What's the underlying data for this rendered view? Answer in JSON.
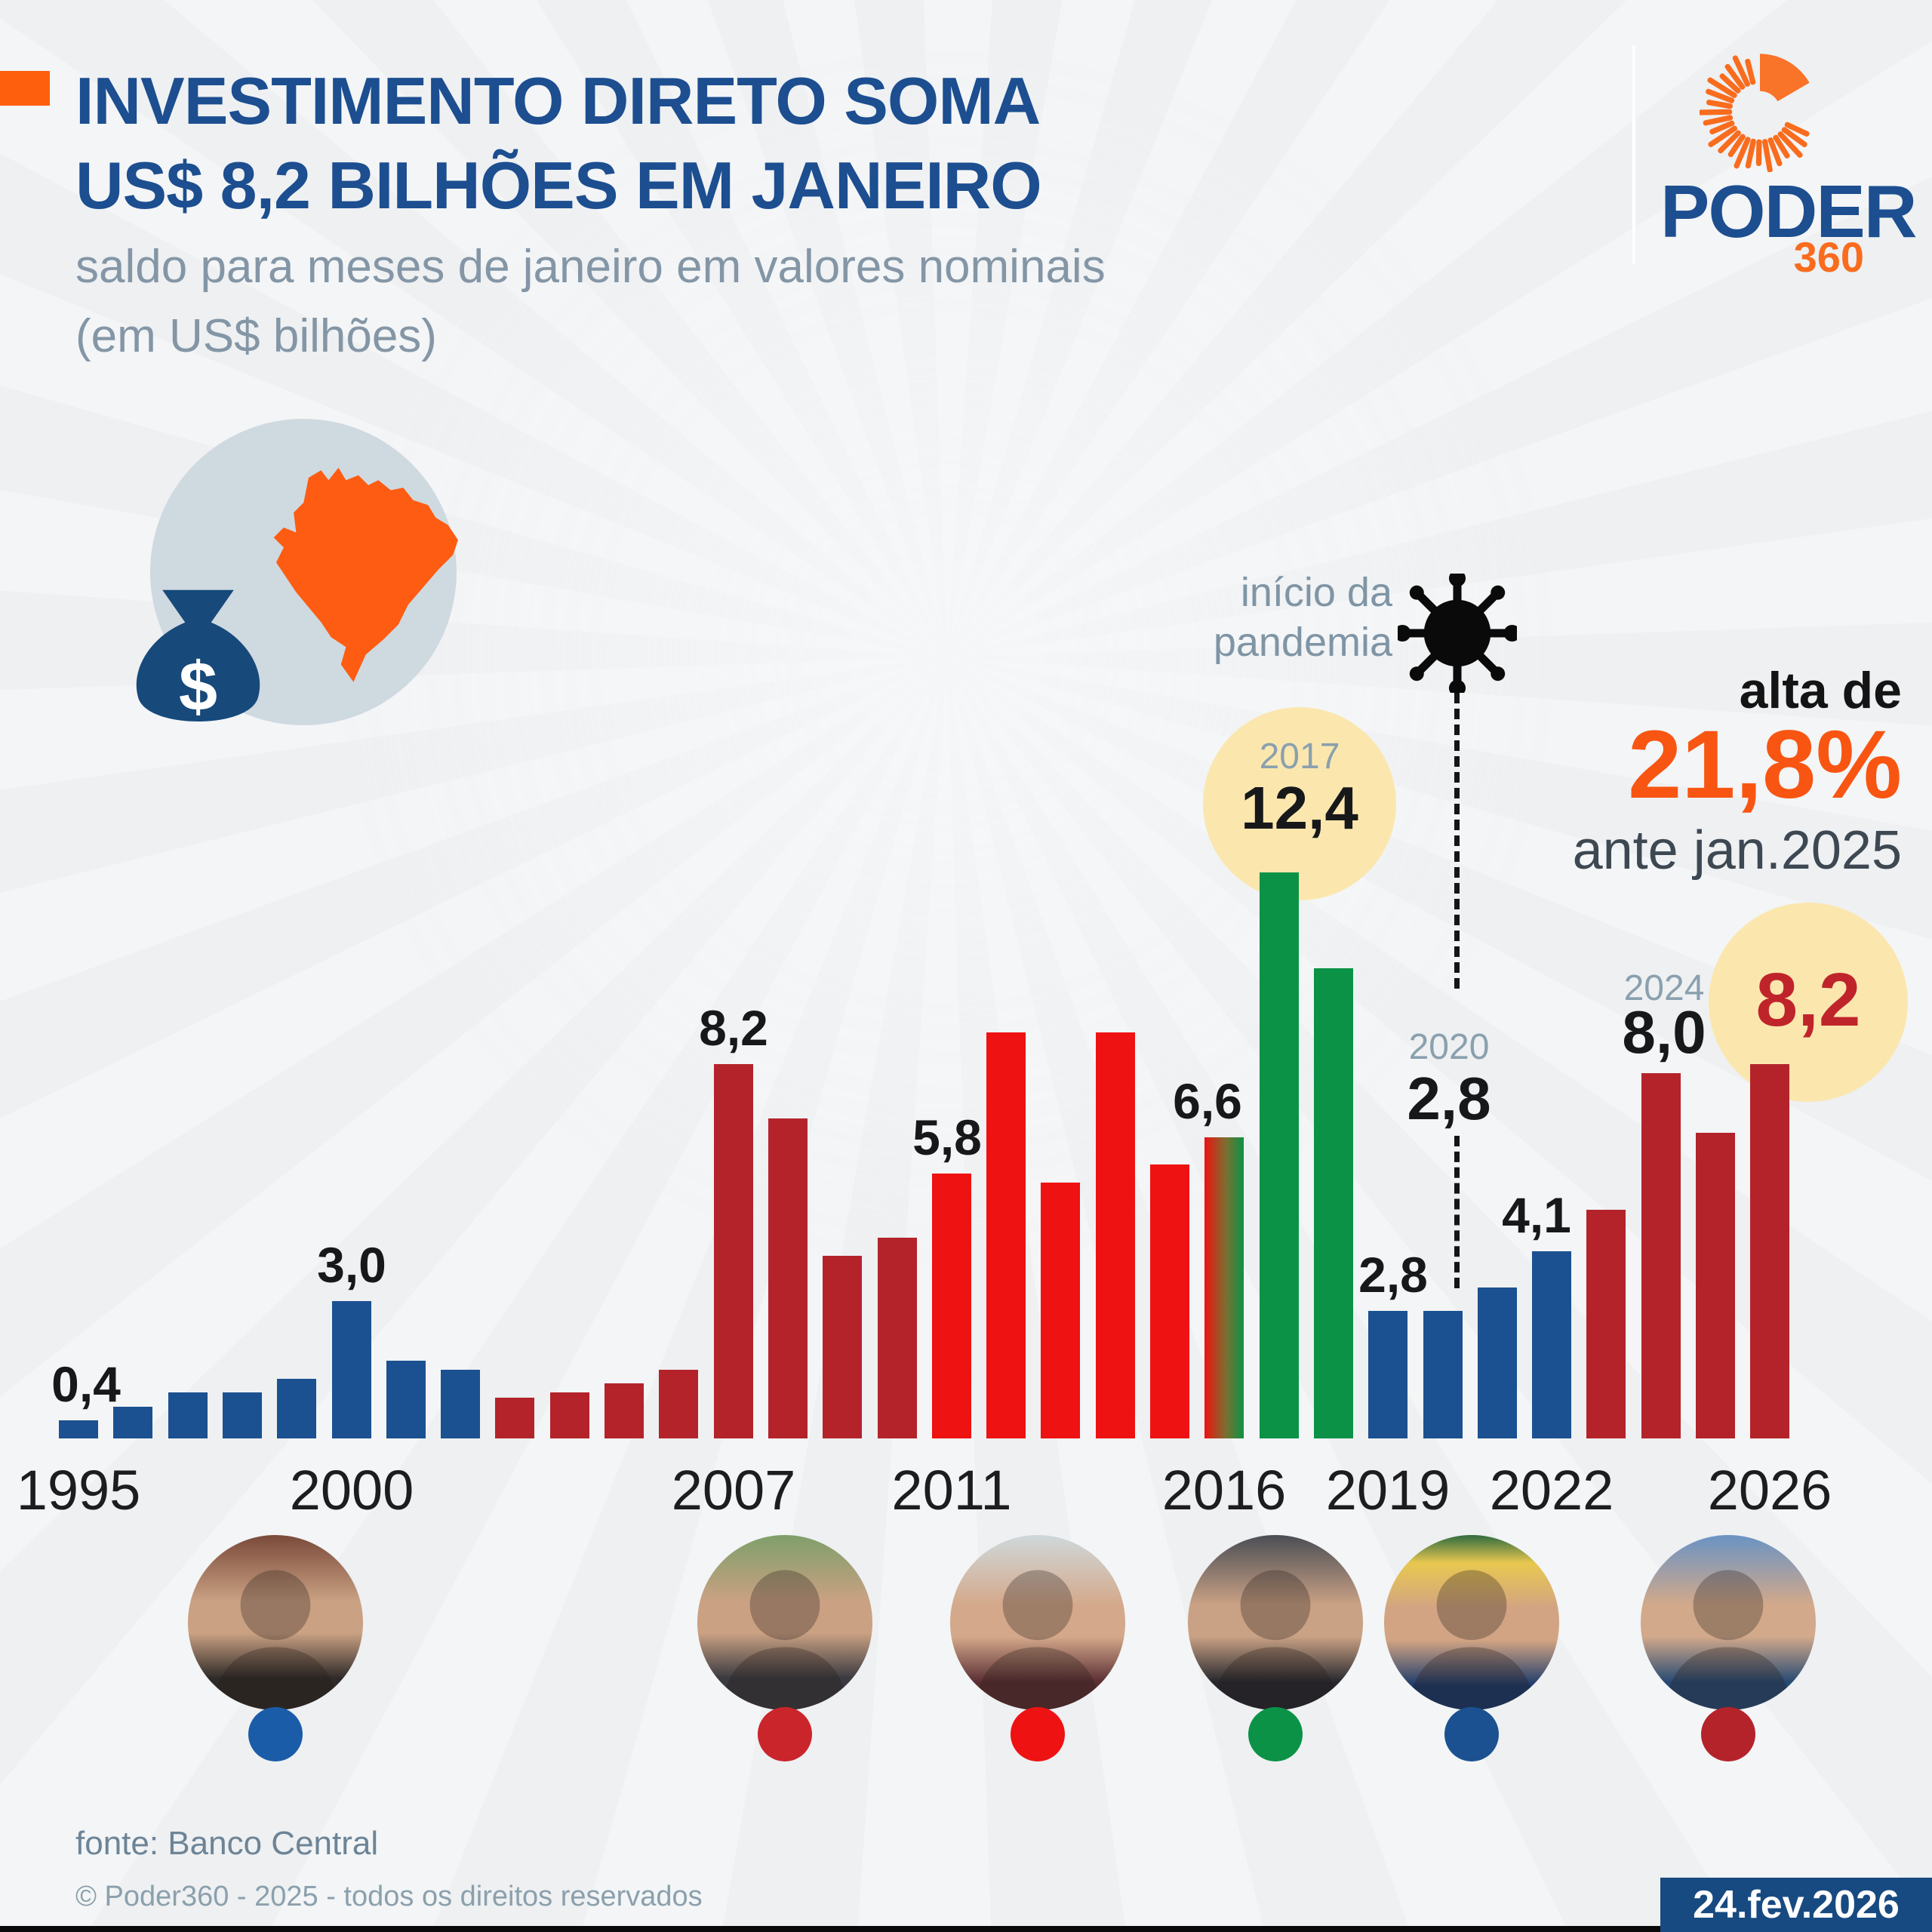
{
  "page": {
    "background": "#eef0f2",
    "bottom_bar_color": "#0a0a0a"
  },
  "header": {
    "accent_square_color": "#fd5f0c",
    "title_line1": "INVESTIMENTO DIRETO SOMA",
    "title_line2": "US$ 8,2 BILHÕES EM JANEIRO",
    "title_color": "#1c4e90",
    "subtitle_line1": "saldo para meses de janeiro em valores nominais",
    "subtitle_line2": "(em US$ bilhões)",
    "subtitle_color": "#8496a6"
  },
  "logo": {
    "word": "PODER",
    "suffix": "360",
    "word_color": "#1c4e90",
    "accent_color": "#f96c1e"
  },
  "icon_badge": {
    "circle_color": "#cfd9e0",
    "map_color": "#fd5c12",
    "bag_color": "#17497b",
    "bag_symbol": "$"
  },
  "annotations": {
    "pandemic": {
      "line1": "início da",
      "line2": "pandemia",
      "color": "#7f95a5"
    },
    "y2017": {
      "year": "2017",
      "value": "12,4",
      "circle_color": "#fbe7ae"
    },
    "y2020": {
      "year": "2020",
      "value": "2,8"
    },
    "y2024": {
      "year": "2024",
      "value": "8,0"
    },
    "y2026": {
      "value": "8,2",
      "value_color": "#c0242b",
      "circle_color": "#fbe7ae"
    },
    "delta": {
      "intro": "alta de",
      "value": "21,8%",
      "value_color": "#f85512",
      "compare": "ante jan.2025"
    }
  },
  "chart_data": {
    "type": "bar",
    "title": "Investimento direto soma US$ 8,2 bilhões em janeiro",
    "subtitle": "saldo para meses de janeiro em valores nominais (em US$ bilhões)",
    "unit": "US$ bilhões",
    "ylim": [
      0,
      13
    ],
    "grid": false,
    "x": [
      1995,
      1996,
      1997,
      1998,
      1999,
      2000,
      2001,
      2002,
      2003,
      2004,
      2005,
      2006,
      2007,
      2008,
      2009,
      2010,
      2011,
      2012,
      2013,
      2014,
      2015,
      2016,
      2017,
      2018,
      2019,
      2020,
      2021,
      2022,
      2023,
      2024,
      2025,
      2026
    ],
    "values": [
      0.4,
      0.7,
      1.0,
      1.0,
      1.3,
      3.0,
      1.7,
      1.5,
      0.9,
      1.0,
      1.2,
      1.5,
      8.2,
      7.0,
      4.0,
      4.4,
      5.8,
      8.9,
      5.6,
      8.9,
      6.0,
      6.6,
      12.4,
      10.3,
      2.8,
      2.8,
      3.3,
      4.1,
      5.0,
      8.0,
      6.7,
      8.2
    ],
    "bar_value_labels": {
      "1995": "0,4",
      "2000": "3,0",
      "2007": "8,2",
      "2011": "5,8",
      "2016": "6,6",
      "2019": "2,8",
      "2022": "4,1"
    },
    "highlighted_values": {
      "2017": "12,4",
      "2020": "2,8",
      "2024": "8,0",
      "2026": "8,2"
    },
    "axis_ticks": [
      "1995",
      "2000",
      "2007",
      "2011",
      "2016",
      "2019",
      "2022",
      "2026"
    ],
    "eras": [
      {
        "from": 1995,
        "to": 2002,
        "color": "#1b5190"
      },
      {
        "from": 2003,
        "to": 2010,
        "color": "#b4232a"
      },
      {
        "from": 2011,
        "to": 2015,
        "color": "#ee1212"
      },
      {
        "from": 2016,
        "to": 2016,
        "color": "gradient-red-green"
      },
      {
        "from": 2017,
        "to": 2018,
        "color": "#0b9247"
      },
      {
        "from": 2019,
        "to": 2022,
        "color": "#1b5190"
      },
      {
        "from": 2023,
        "to": 2026,
        "color": "#b4232a"
      }
    ]
  },
  "presidents": [
    {
      "id": "fhc",
      "dot_color": "#1b5ca8"
    },
    {
      "id": "lula",
      "dot_color": "#c9252b"
    },
    {
      "id": "dilma",
      "dot_color": "#ee1212"
    },
    {
      "id": "temer",
      "dot_color": "#0b9247"
    },
    {
      "id": "bolsonaro",
      "dot_color": "#1b5190"
    },
    {
      "id": "lula-2023",
      "dot_color": "#b4232a"
    }
  ],
  "footer": {
    "source": "fonte: Banco Central",
    "copyright": "© Poder360 - 2025 - todos os direitos reservados",
    "date_badge": "24.fev.2026"
  }
}
